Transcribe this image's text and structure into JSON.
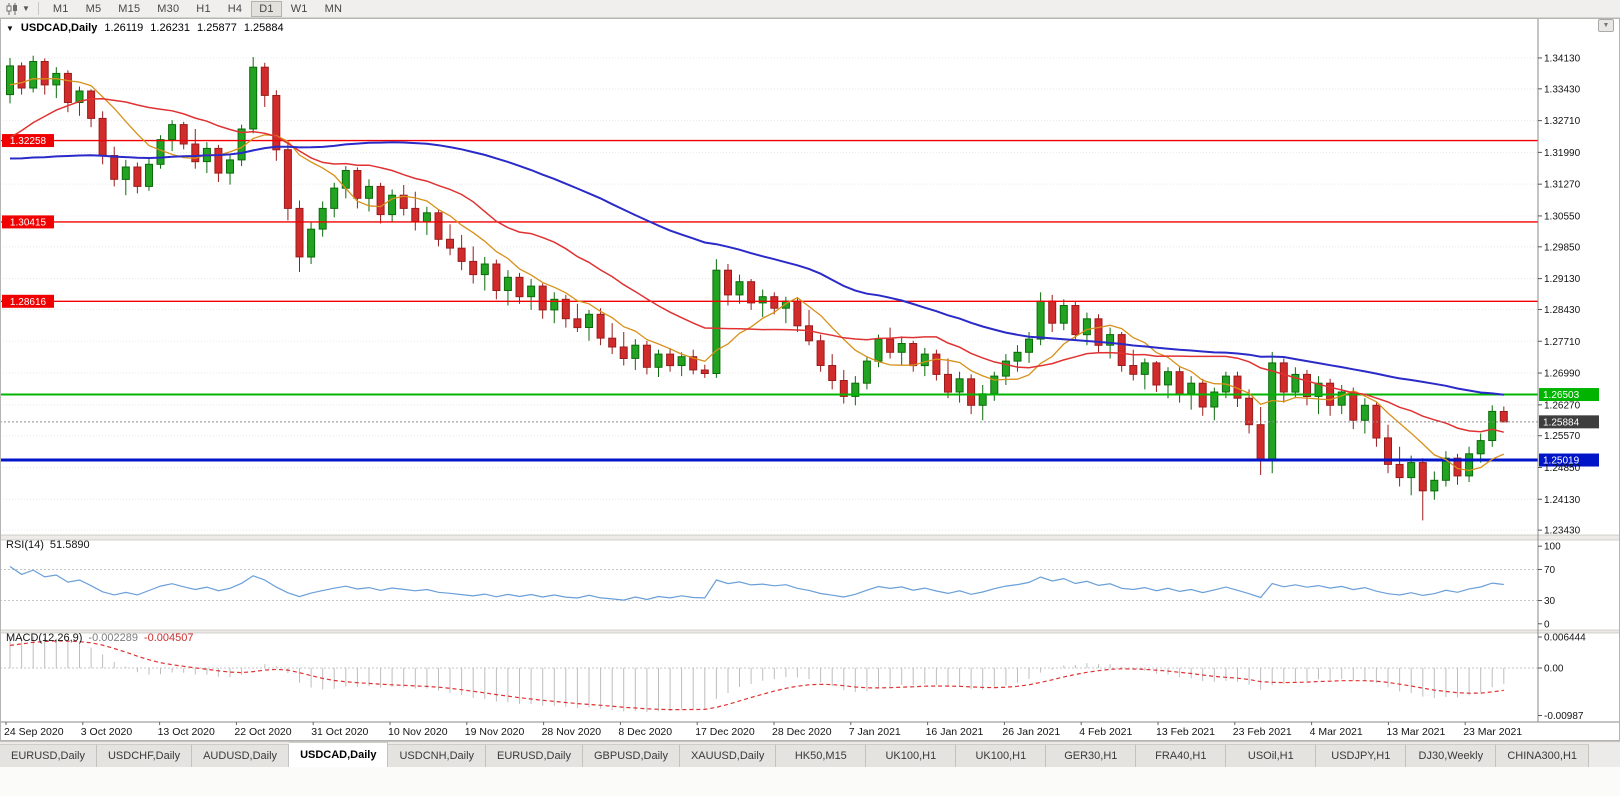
{
  "toolbar": {
    "chart_type_icon": "candlestick-chart-icon",
    "caret_icon": "chevron-down-icon",
    "timeframes": [
      {
        "label": "M1"
      },
      {
        "label": "M5"
      },
      {
        "label": "M15"
      },
      {
        "label": "M30"
      },
      {
        "label": "H1"
      },
      {
        "label": "H4"
      },
      {
        "label": "D1",
        "active": true
      },
      {
        "label": "W1"
      },
      {
        "label": "MN"
      }
    ]
  },
  "chart": {
    "title": "USDCAD,Daily",
    "ohlc": [
      "1.26119",
      "1.26231",
      "1.25877",
      "1.25884"
    ]
  },
  "chart_data": {
    "type": "candlestick",
    "symbol": "USDCAD",
    "timeframe": "Daily",
    "up_color": "#22A322",
    "down_color": "#D22B2B",
    "price_ylim": [
      1.2332,
      1.3499
    ],
    "price_axis_ticks": [
      "1.34130",
      "1.33430",
      "1.32710",
      "1.31990",
      "1.31270",
      "1.30550",
      "1.29850",
      "1.29130",
      "1.28430",
      "1.27710",
      "1.26990",
      "1.26270",
      "1.25570",
      "1.24850",
      "1.24130",
      "1.23430"
    ],
    "x_axis_dates": [
      "24 Sep 2020",
      "3 Oct 2020",
      "13 Oct 2020",
      "22 Oct 2020",
      "31 Oct 2020",
      "10 Nov 2020",
      "19 Nov 2020",
      "28 Nov 2020",
      "8 Dec 2020",
      "17 Dec 2020",
      "28 Dec 2020",
      "7 Jan 2021",
      "16 Jan 2021",
      "26 Jan 2021",
      "4 Feb 2021",
      "13 Feb 2021",
      "23 Feb 2021",
      "4 Mar 2021",
      "13 Mar 2021",
      "23 Mar 2021"
    ],
    "hlines": [
      {
        "price": 1.32258,
        "label": "1.32258",
        "color": "#F00000",
        "label_side": "left",
        "width": 1.4
      },
      {
        "price": 1.30415,
        "label": "1.30415",
        "color": "#F00000",
        "label_side": "left",
        "width": 1.4
      },
      {
        "price": 1.28616,
        "label": "1.28616",
        "color": "#F00000",
        "label_side": "left",
        "width": 1.4
      },
      {
        "price": 1.26503,
        "label": "1.26503",
        "color": "#00B400",
        "label_side": "right",
        "width": 2
      },
      {
        "price": 1.25019,
        "label": "1.25019",
        "color": "#0014C8",
        "label_side": "right",
        "width": 3
      }
    ],
    "current_price": {
      "label": "1.25884",
      "value": 1.25884
    },
    "moving_averages": [
      {
        "period": 8,
        "color": "#D79019",
        "width": 1.3
      },
      {
        "period": 20,
        "color": "#E03232",
        "width": 1.5
      },
      {
        "period": 50,
        "color": "#2A2AC8",
        "width": 2
      }
    ],
    "prehistory_closes": [
      1.339,
      1.3405,
      1.3378,
      1.3362,
      1.334,
      1.3352,
      1.3328,
      1.3305,
      1.3318,
      1.3292,
      1.3268,
      1.328,
      1.3255,
      1.3232,
      1.3244,
      1.3218,
      1.3195,
      1.3206,
      1.3182,
      1.3158,
      1.317,
      1.3146,
      1.3122,
      1.3134,
      1.311,
      1.3086,
      1.3098,
      1.3074,
      1.3052,
      1.3064,
      1.304,
      1.3016,
      1.3028,
      1.3006,
      1.2986,
      1.2998,
      1.3022,
      1.3046,
      1.3068,
      1.3092,
      1.3116,
      1.314,
      1.3164,
      1.3188,
      1.3212,
      1.3236,
      1.326,
      1.3284,
      1.3308,
      1.3332,
      1.3356,
      1.3372,
      1.3348,
      1.3365,
      1.3342
    ],
    "candles": [
      [
        1.333,
        1.3413,
        1.331,
        1.3395
      ],
      [
        1.3395,
        1.3403,
        1.333,
        1.3345
      ],
      [
        1.3345,
        1.3418,
        1.3335,
        1.3405
      ],
      [
        1.3405,
        1.3412,
        1.333,
        1.3352
      ],
      [
        1.3352,
        1.3392,
        1.3322,
        1.3378
      ],
      [
        1.3378,
        1.3385,
        1.329,
        1.3312
      ],
      [
        1.3312,
        1.3348,
        1.3282,
        1.3338
      ],
      [
        1.3338,
        1.3342,
        1.3256,
        1.3276
      ],
      [
        1.3276,
        1.3292,
        1.3172,
        1.3192
      ],
      [
        1.3192,
        1.3212,
        1.3122,
        1.3138
      ],
      [
        1.3138,
        1.3182,
        1.3102,
        1.3166
      ],
      [
        1.3166,
        1.3176,
        1.3106,
        1.3122
      ],
      [
        1.3122,
        1.3184,
        1.3112,
        1.3172
      ],
      [
        1.3172,
        1.3238,
        1.3162,
        1.3228
      ],
      [
        1.3228,
        1.3272,
        1.3202,
        1.3262
      ],
      [
        1.3262,
        1.3268,
        1.3206,
        1.3218
      ],
      [
        1.3218,
        1.3252,
        1.3162,
        1.3178
      ],
      [
        1.3178,
        1.3222,
        1.3152,
        1.3208
      ],
      [
        1.3208,
        1.3216,
        1.3132,
        1.3152
      ],
      [
        1.3152,
        1.3192,
        1.3126,
        1.3182
      ],
      [
        1.3182,
        1.3262,
        1.3168,
        1.3252
      ],
      [
        1.3252,
        1.3415,
        1.3242,
        1.3392
      ],
      [
        1.3392,
        1.3402,
        1.3302,
        1.3328
      ],
      [
        1.3328,
        1.334,
        1.318,
        1.3205
      ],
      [
        1.3205,
        1.3222,
        1.3045,
        1.3072
      ],
      [
        1.3072,
        1.309,
        1.2928,
        1.2962
      ],
      [
        1.2962,
        1.304,
        1.2946,
        1.3025
      ],
      [
        1.3025,
        1.3088,
        1.3008,
        1.3072
      ],
      [
        1.3072,
        1.313,
        1.3052,
        1.3118
      ],
      [
        1.3118,
        1.3168,
        1.3095,
        1.3158
      ],
      [
        1.3158,
        1.3165,
        1.3072,
        1.3095
      ],
      [
        1.3095,
        1.3138,
        1.3065,
        1.3122
      ],
      [
        1.3122,
        1.313,
        1.3038,
        1.3058
      ],
      [
        1.3058,
        1.3115,
        1.3042,
        1.3102
      ],
      [
        1.3102,
        1.3125,
        1.3056,
        1.3072
      ],
      [
        1.3072,
        1.311,
        1.3022,
        1.3042
      ],
      [
        1.3042,
        1.3076,
        1.3012,
        1.3062
      ],
      [
        1.3062,
        1.307,
        1.2986,
        1.3002
      ],
      [
        1.3002,
        1.3036,
        1.2966,
        1.2982
      ],
      [
        1.2982,
        1.3012,
        1.2932,
        1.2952
      ],
      [
        1.2952,
        1.2986,
        1.2902,
        1.2922
      ],
      [
        1.2922,
        1.2962,
        1.2886,
        1.2946
      ],
      [
        1.2946,
        1.2956,
        1.2866,
        1.2886
      ],
      [
        1.2886,
        1.2932,
        1.2852,
        1.2916
      ],
      [
        1.2916,
        1.2926,
        1.2856,
        1.2872
      ],
      [
        1.2872,
        1.2912,
        1.2842,
        1.2896
      ],
      [
        1.2896,
        1.2902,
        1.2822,
        1.2842
      ],
      [
        1.2842,
        1.2882,
        1.2812,
        1.2866
      ],
      [
        1.2866,
        1.2876,
        1.2802,
        1.2822
      ],
      [
        1.2822,
        1.2856,
        1.2792,
        1.2802
      ],
      [
        1.2802,
        1.2842,
        1.2772,
        1.2832
      ],
      [
        1.2832,
        1.2846,
        1.2762,
        1.2778
      ],
      [
        1.2778,
        1.2812,
        1.2742,
        1.2758
      ],
      [
        1.2758,
        1.2792,
        1.2716,
        1.2732
      ],
      [
        1.2732,
        1.2776,
        1.2706,
        1.2762
      ],
      [
        1.2762,
        1.2772,
        1.2696,
        1.2712
      ],
      [
        1.2712,
        1.2752,
        1.269,
        1.2742
      ],
      [
        1.2742,
        1.2756,
        1.2702,
        1.2716
      ],
      [
        1.2716,
        1.2746,
        1.2692,
        1.2736
      ],
      [
        1.2736,
        1.2752,
        1.2696,
        1.2706
      ],
      [
        1.2706,
        1.2718,
        1.2688,
        1.2698
      ],
      [
        1.2698,
        1.2957,
        1.2688,
        1.2932
      ],
      [
        1.2932,
        1.2946,
        1.2852,
        1.2876
      ],
      [
        1.2876,
        1.2922,
        1.2856,
        1.2906
      ],
      [
        1.2906,
        1.2912,
        1.2842,
        1.2858
      ],
      [
        1.2858,
        1.2888,
        1.2826,
        1.2872
      ],
      [
        1.2872,
        1.2882,
        1.2832,
        1.2846
      ],
      [
        1.2846,
        1.2872,
        1.2812,
        1.2862
      ],
      [
        1.2862,
        1.2868,
        1.2792,
        1.2806
      ],
      [
        1.2806,
        1.2842,
        1.2762,
        1.2772
      ],
      [
        1.2772,
        1.2786,
        1.2702,
        1.2716
      ],
      [
        1.2716,
        1.2742,
        1.2662,
        1.2682
      ],
      [
        1.2682,
        1.2706,
        1.263,
        1.2646
      ],
      [
        1.2646,
        1.2692,
        1.2626,
        1.2676
      ],
      [
        1.2676,
        1.2736,
        1.2662,
        1.2726
      ],
      [
        1.2726,
        1.2786,
        1.2712,
        1.2776
      ],
      [
        1.2776,
        1.2802,
        1.2732,
        1.2746
      ],
      [
        1.2746,
        1.2782,
        1.2716,
        1.2766
      ],
      [
        1.2766,
        1.2772,
        1.2702,
        1.2716
      ],
      [
        1.2716,
        1.2756,
        1.2692,
        1.2742
      ],
      [
        1.2742,
        1.2752,
        1.2682,
        1.2696
      ],
      [
        1.2696,
        1.2732,
        1.2642,
        1.2656
      ],
      [
        1.2656,
        1.2702,
        1.2632,
        1.2686
      ],
      [
        1.2686,
        1.2696,
        1.2606,
        1.2626
      ],
      [
        1.2626,
        1.2672,
        1.2592,
        1.2652
      ],
      [
        1.2652,
        1.2702,
        1.2636,
        1.2692
      ],
      [
        1.2692,
        1.2742,
        1.2672,
        1.2726
      ],
      [
        1.2726,
        1.2762,
        1.2702,
        1.2746
      ],
      [
        1.2746,
        1.2792,
        1.2722,
        1.2776
      ],
      [
        1.2776,
        1.2882,
        1.2762,
        1.2862
      ],
      [
        1.2862,
        1.2876,
        1.2792,
        1.2812
      ],
      [
        1.2812,
        1.2866,
        1.2796,
        1.2852
      ],
      [
        1.2852,
        1.2862,
        1.2772,
        1.2786
      ],
      [
        1.2786,
        1.2836,
        1.2762,
        1.2822
      ],
      [
        1.2822,
        1.2832,
        1.2746,
        1.2762
      ],
      [
        1.2762,
        1.2802,
        1.2732,
        1.2786
      ],
      [
        1.2786,
        1.2792,
        1.2702,
        1.2716
      ],
      [
        1.2716,
        1.2752,
        1.2682,
        1.2696
      ],
      [
        1.2696,
        1.2732,
        1.2662,
        1.2722
      ],
      [
        1.2722,
        1.2726,
        1.2656,
        1.2672
      ],
      [
        1.2672,
        1.2712,
        1.2642,
        1.2702
      ],
      [
        1.2702,
        1.2712,
        1.2632,
        1.2652
      ],
      [
        1.2652,
        1.2692,
        1.2616,
        1.2676
      ],
      [
        1.2676,
        1.2686,
        1.2602,
        1.2622
      ],
      [
        1.2622,
        1.2666,
        1.2592,
        1.2656
      ],
      [
        1.2656,
        1.2702,
        1.2642,
        1.2692
      ],
      [
        1.2692,
        1.2702,
        1.2622,
        1.2642
      ],
      [
        1.2642,
        1.2662,
        1.2562,
        1.2582
      ],
      [
        1.2582,
        1.2622,
        1.2468,
        1.2502
      ],
      [
        1.2502,
        1.2747,
        1.2472,
        1.2722
      ],
      [
        1.2722,
        1.2732,
        1.2632,
        1.2656
      ],
      [
        1.2656,
        1.2712,
        1.2642,
        1.2696
      ],
      [
        1.2696,
        1.2706,
        1.2626,
        1.2646
      ],
      [
        1.2646,
        1.2692,
        1.2606,
        1.2676
      ],
      [
        1.2676,
        1.2686,
        1.2602,
        1.2626
      ],
      [
        1.2626,
        1.2672,
        1.2606,
        1.2656
      ],
      [
        1.2656,
        1.2666,
        1.2572,
        1.2592
      ],
      [
        1.2592,
        1.2642,
        1.2562,
        1.2626
      ],
      [
        1.2626,
        1.2632,
        1.2532,
        1.2552
      ],
      [
        1.2552,
        1.2582,
        1.2472,
        1.2492
      ],
      [
        1.2492,
        1.2532,
        1.2442,
        1.2462
      ],
      [
        1.2462,
        1.2512,
        1.2422,
        1.2496
      ],
      [
        1.2496,
        1.2506,
        1.2365,
        1.2432
      ],
      [
        1.2432,
        1.2476,
        1.2412,
        1.2456
      ],
      [
        1.2456,
        1.2522,
        1.2442,
        1.2506
      ],
      [
        1.2506,
        1.2516,
        1.2446,
        1.2466
      ],
      [
        1.2466,
        1.2532,
        1.2452,
        1.2516
      ],
      [
        1.2516,
        1.2562,
        1.2496,
        1.2546
      ],
      [
        1.2546,
        1.2626,
        1.2532,
        1.2612
      ],
      [
        1.26119,
        1.26231,
        1.25877,
        1.25884
      ]
    ],
    "rsi": {
      "label": "RSI(14)",
      "display_value": "51.5890",
      "period": 14,
      "color": "#6A9FD8",
      "levels": [
        70,
        30
      ],
      "ylim": [
        -8,
        108
      ],
      "ticks": [
        {
          "label": "100",
          "value": 100
        },
        {
          "label": "70",
          "value": 70
        },
        {
          "label": "30",
          "value": 30
        },
        {
          "label": "0",
          "value": 0
        }
      ]
    },
    "macd": {
      "label": "MACD(12,26,9)",
      "display_values": [
        "-0.002289",
        "-0.004507"
      ],
      "fast": 12,
      "slow": 26,
      "signal": 9,
      "histogram_color": "#BDBDBD",
      "signal_color": "#E03232",
      "ylim": [
        -0.01122,
        0.00728
      ],
      "ticks": [
        {
          "label": "0.006444",
          "value": 0.006444
        },
        {
          "label": "0.00",
          "value": 0
        },
        {
          "label": "-0.00987",
          "value": -0.00987
        }
      ]
    }
  },
  "tabs": [
    {
      "label": "EURUSD,Daily"
    },
    {
      "label": "USDCHF,Daily"
    },
    {
      "label": "AUDUSD,Daily"
    },
    {
      "label": "USDCAD,Daily",
      "active": true
    },
    {
      "label": "USDCNH,Daily"
    },
    {
      "label": "EURUSD,Daily"
    },
    {
      "label": "GBPUSD,Daily"
    },
    {
      "label": "XAUUSD,Daily"
    },
    {
      "label": "HK50,M15"
    },
    {
      "label": "UK100,H1"
    },
    {
      "label": "UK100,H1"
    },
    {
      "label": "GER30,H1"
    },
    {
      "label": "FRA40,H1"
    },
    {
      "label": "USOil,H1"
    },
    {
      "label": "USDJPY,H1"
    },
    {
      "label": "DJ30,Weekly"
    },
    {
      "label": "CHINA300,H1"
    }
  ]
}
